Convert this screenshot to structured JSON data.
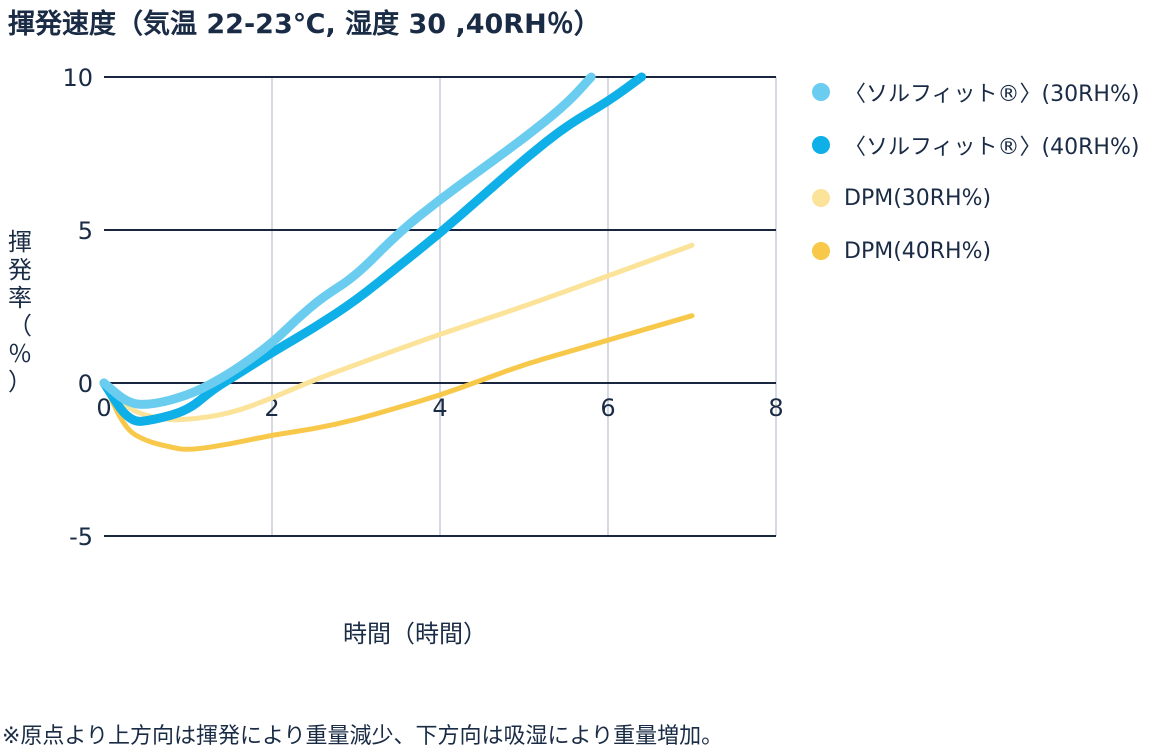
{
  "chart_data": {
    "type": "line",
    "title": "揮発速度（気温 22-23℃, 湿度 30 ,40RH％）",
    "xlabel": "時間（時間）",
    "ylabel": "揮発率（％）",
    "xlim": [
      0,
      8
    ],
    "ylim": [
      -5,
      10
    ],
    "x_ticks": [
      "0",
      "2",
      "4",
      "6",
      "8"
    ],
    "y_ticks": [
      "10",
      "5",
      "0",
      "-5"
    ],
    "x_tick_values": [
      0,
      2,
      4,
      6,
      8
    ],
    "y_tick_values": [
      10,
      5,
      0,
      -5
    ],
    "grid": "vertical at x ticks, horizontal at y ticks",
    "legend_position": "right",
    "series": [
      {
        "name": "〈ソルフィット®〉(30RH%)",
        "color": "#6acdf0",
        "points": [
          [
            0,
            0
          ],
          [
            0.3,
            -0.7
          ],
          [
            0.6,
            -0.7
          ],
          [
            1.0,
            -0.4
          ],
          [
            1.3,
            0
          ],
          [
            1.6,
            0.5
          ],
          [
            2.0,
            1.3
          ],
          [
            2.3,
            2.1
          ],
          [
            2.6,
            2.8
          ],
          [
            3.0,
            3.5
          ],
          [
            3.5,
            4.9
          ],
          [
            4.0,
            6.0
          ],
          [
            4.5,
            7.0
          ],
          [
            5.0,
            8.0
          ],
          [
            5.5,
            9.1
          ],
          [
            5.8,
            10.0
          ]
        ]
      },
      {
        "name": "〈ソルフィット®〉(40RH%)",
        "color": "#0fafe8",
        "points": [
          [
            0,
            0
          ],
          [
            0.3,
            -1.3
          ],
          [
            0.6,
            -1.2
          ],
          [
            1.0,
            -0.9
          ],
          [
            1.3,
            -0.2
          ],
          [
            1.6,
            0.3
          ],
          [
            2.0,
            1.0
          ],
          [
            2.5,
            1.8
          ],
          [
            3.0,
            2.7
          ],
          [
            3.5,
            3.8
          ],
          [
            4.0,
            4.9
          ],
          [
            4.5,
            6.1
          ],
          [
            5.0,
            7.3
          ],
          [
            5.5,
            8.4
          ],
          [
            6.0,
            9.2
          ],
          [
            6.4,
            10.0
          ]
        ]
      },
      {
        "name": "DPM(30RH%)",
        "color": "#fce39a",
        "points": [
          [
            0,
            0
          ],
          [
            0.3,
            -0.9
          ],
          [
            0.7,
            -1.2
          ],
          [
            1.0,
            -1.2
          ],
          [
            1.5,
            -1.0
          ],
          [
            2.0,
            -0.5
          ],
          [
            2.5,
            0.1
          ],
          [
            3.0,
            0.6
          ],
          [
            4.0,
            1.6
          ],
          [
            5.0,
            2.5
          ],
          [
            6.0,
            3.5
          ],
          [
            7.0,
            4.5
          ]
        ]
      },
      {
        "name": "DPM(40RH%)",
        "color": "#f8c84a",
        "points": [
          [
            0,
            0
          ],
          [
            0.25,
            -1.5
          ],
          [
            0.5,
            -1.9
          ],
          [
            0.8,
            -2.1
          ],
          [
            1.0,
            -2.2
          ],
          [
            1.5,
            -2.0
          ],
          [
            2.0,
            -1.7
          ],
          [
            2.5,
            -1.5
          ],
          [
            3.0,
            -1.2
          ],
          [
            3.5,
            -0.8
          ],
          [
            4.0,
            -0.4
          ],
          [
            4.5,
            0.1
          ],
          [
            5.0,
            0.6
          ],
          [
            5.5,
            1.0
          ],
          [
            6.0,
            1.4
          ],
          [
            6.5,
            1.8
          ],
          [
            7.0,
            2.2
          ]
        ]
      }
    ]
  },
  "footnote": "※原点より上方向は揮発により重量減少、下方向は吸湿により重量増加。"
}
